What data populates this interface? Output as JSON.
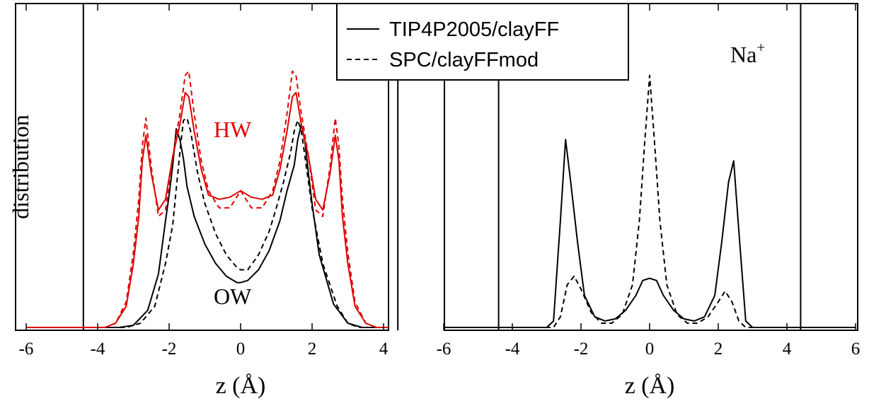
{
  "chart_data": [
    {
      "type": "line",
      "panel": "left",
      "xlabel": "z (Å)",
      "ylabel": "distribution",
      "xlim": [
        -6,
        4.4
      ],
      "ylim": [
        0,
        1
      ],
      "xticks": [
        -6,
        -4,
        -2,
        0,
        2,
        4
      ],
      "tick_labels": [
        "-6",
        "-4",
        "-2",
        "0",
        "2",
        "4"
      ],
      "vlines": [
        -4.4,
        4.4
      ],
      "annotations": [
        {
          "text": "HW",
          "color": "#e00000",
          "x": -0.1,
          "y": 0.73
        },
        {
          "text": "OW",
          "color": "#000000",
          "x": -0.1,
          "y": 0.1
        }
      ],
      "legend": {
        "placement": "top-center",
        "entries": [
          {
            "label": "TIP4P2005/clayFF",
            "style": "solid"
          },
          {
            "label": "SPC/clayFFmod",
            "style": "dashed"
          }
        ]
      },
      "series": [
        {
          "name": "TIP4P2005/clayFF",
          "species": "OW",
          "color": "#000000",
          "style": "solid",
          "x": [
            -6,
            -3.4,
            -3.0,
            -2.6,
            -2.3,
            -2.1,
            -2.0,
            -1.9,
            -1.8,
            -1.7,
            -1.6,
            -1.5,
            -1.3,
            -1.0,
            -0.7,
            -0.4,
            -0.1,
            0,
            0.2,
            0.5,
            0.8,
            1.1,
            1.3,
            1.5,
            1.6,
            1.7,
            1.8,
            1.9,
            2.0,
            2.2,
            2.6,
            3.0,
            3.4,
            4.4
          ],
          "y": [
            0,
            0,
            0.01,
            0.08,
            0.25,
            0.5,
            0.62,
            0.76,
            0.93,
            0.88,
            0.79,
            0.66,
            0.52,
            0.39,
            0.3,
            0.24,
            0.21,
            0.21,
            0.22,
            0.27,
            0.36,
            0.5,
            0.64,
            0.76,
            0.88,
            0.95,
            0.87,
            0.72,
            0.58,
            0.34,
            0.11,
            0.02,
            0,
            0
          ]
        },
        {
          "name": "SPC/clayFFmod",
          "species": "OW",
          "color": "#000000",
          "style": "dashed",
          "x": [
            -6,
            -3.2,
            -2.8,
            -2.4,
            -2.1,
            -1.9,
            -1.8,
            -1.7,
            -1.6,
            -1.5,
            -1.4,
            -1.2,
            -1.0,
            -0.7,
            -0.4,
            -0.1,
            0,
            0.2,
            0.5,
            0.8,
            1.0,
            1.2,
            1.4,
            1.5,
            1.6,
            1.7,
            1.8,
            2.0,
            2.3,
            2.7,
            3.0,
            3.3,
            4.4
          ],
          "y": [
            0,
            0,
            0.02,
            0.1,
            0.3,
            0.48,
            0.65,
            0.82,
            0.97,
            0.98,
            0.92,
            0.72,
            0.58,
            0.44,
            0.34,
            0.28,
            0.27,
            0.27,
            0.34,
            0.45,
            0.56,
            0.68,
            0.82,
            0.92,
            0.97,
            0.92,
            0.8,
            0.56,
            0.3,
            0.1,
            0.02,
            0,
            0
          ]
        },
        {
          "name": "TIP4P2005/clayFF",
          "species": "HW",
          "color": "#e00000",
          "style": "solid",
          "x": [
            -6,
            -3.8,
            -3.5,
            -3.2,
            -3.0,
            -2.85,
            -2.75,
            -2.65,
            -2.5,
            -2.3,
            -2.1,
            -1.9,
            -1.7,
            -1.55,
            -1.45,
            -1.3,
            -1.1,
            -0.9,
            -0.6,
            -0.3,
            0,
            0.3,
            0.6,
            0.9,
            1.1,
            1.3,
            1.45,
            1.55,
            1.7,
            1.9,
            2.1,
            2.3,
            2.5,
            2.65,
            2.75,
            2.85,
            3.0,
            3.2,
            3.5,
            3.8,
            4.4
          ],
          "y": [
            0,
            0,
            0.02,
            0.1,
            0.3,
            0.52,
            0.78,
            0.9,
            0.72,
            0.55,
            0.6,
            0.8,
            0.95,
            1.1,
            1.08,
            0.92,
            0.74,
            0.62,
            0.6,
            0.61,
            0.64,
            0.61,
            0.6,
            0.62,
            0.74,
            0.92,
            1.08,
            1.1,
            0.95,
            0.8,
            0.6,
            0.55,
            0.72,
            0.9,
            0.78,
            0.52,
            0.3,
            0.1,
            0.02,
            0,
            0
          ]
        },
        {
          "name": "SPC/clayFFmod",
          "species": "HW",
          "color": "#e00000",
          "style": "dashed",
          "x": [
            -6,
            -3.8,
            -3.5,
            -3.2,
            -3.0,
            -2.85,
            -2.75,
            -2.65,
            -2.5,
            -2.3,
            -2.1,
            -1.9,
            -1.7,
            -1.55,
            -1.45,
            -1.3,
            -1.1,
            -0.9,
            -0.6,
            -0.3,
            0,
            0.3,
            0.6,
            0.9,
            1.1,
            1.3,
            1.45,
            1.55,
            1.7,
            1.9,
            2.1,
            2.3,
            2.5,
            2.65,
            2.75,
            2.85,
            3.0,
            3.2,
            3.5,
            3.8,
            4.4
          ],
          "y": [
            0,
            0,
            0.02,
            0.12,
            0.35,
            0.6,
            0.85,
            0.98,
            0.75,
            0.52,
            0.55,
            0.8,
            1.0,
            1.18,
            1.2,
            1.0,
            0.78,
            0.64,
            0.56,
            0.56,
            0.64,
            0.56,
            0.56,
            0.64,
            0.78,
            1.0,
            1.2,
            1.18,
            1.0,
            0.8,
            0.55,
            0.52,
            0.75,
            0.98,
            0.85,
            0.6,
            0.35,
            0.12,
            0.02,
            0,
            0
          ]
        }
      ]
    },
    {
      "type": "line",
      "panel": "right",
      "xlabel": "z (Å)",
      "xlim": [
        -6,
        6
      ],
      "ylim": [
        0,
        1
      ],
      "xticks": [
        -6,
        -4,
        -2,
        0,
        2,
        4,
        6
      ],
      "tick_labels": [
        "-6",
        "-4",
        "-2",
        "0",
        "2",
        "4",
        "6"
      ],
      "vlines": [
        -4.4,
        4.4
      ],
      "annotations": [
        {
          "text": "Na",
          "superscript": "+",
          "color": "#000000",
          "x": 3.6,
          "y": 0.91
        }
      ],
      "series": [
        {
          "name": "TIP4P2005/clayFF",
          "species": "Na+",
          "color": "#000000",
          "style": "solid",
          "x": [
            -6,
            -3.0,
            -2.8,
            -2.6,
            -2.45,
            -2.3,
            -2.1,
            -1.9,
            -1.6,
            -1.3,
            -1.0,
            -0.7,
            -0.4,
            -0.2,
            0,
            0.2,
            0.4,
            0.7,
            1.0,
            1.3,
            1.6,
            1.9,
            2.1,
            2.3,
            2.45,
            2.6,
            2.8,
            3.0,
            6
          ],
          "y": [
            0,
            0,
            0.03,
            0.5,
            0.88,
            0.68,
            0.4,
            0.15,
            0.05,
            0.03,
            0.04,
            0.08,
            0.15,
            0.22,
            0.23,
            0.22,
            0.15,
            0.08,
            0.04,
            0.03,
            0.05,
            0.15,
            0.4,
            0.68,
            0.78,
            0.45,
            0.03,
            0,
            0
          ]
        },
        {
          "name": "SPC/clayFFmod",
          "species": "Na+",
          "color": "#000000",
          "style": "dashed",
          "x": [
            -6,
            -2.8,
            -2.6,
            -2.4,
            -2.2,
            -2.0,
            -1.7,
            -1.4,
            -1.1,
            -0.8,
            -0.5,
            -0.3,
            -0.15,
            0,
            0.15,
            0.3,
            0.5,
            0.8,
            1.1,
            1.4,
            1.7,
            2.0,
            2.2,
            2.4,
            2.6,
            2.8,
            6
          ],
          "y": [
            0,
            0,
            0.05,
            0.2,
            0.24,
            0.18,
            0.07,
            0.02,
            0.02,
            0.06,
            0.2,
            0.5,
            0.85,
            1.18,
            0.85,
            0.5,
            0.2,
            0.06,
            0.02,
            0.02,
            0.05,
            0.12,
            0.17,
            0.12,
            0.03,
            0,
            0
          ]
        }
      ]
    }
  ]
}
